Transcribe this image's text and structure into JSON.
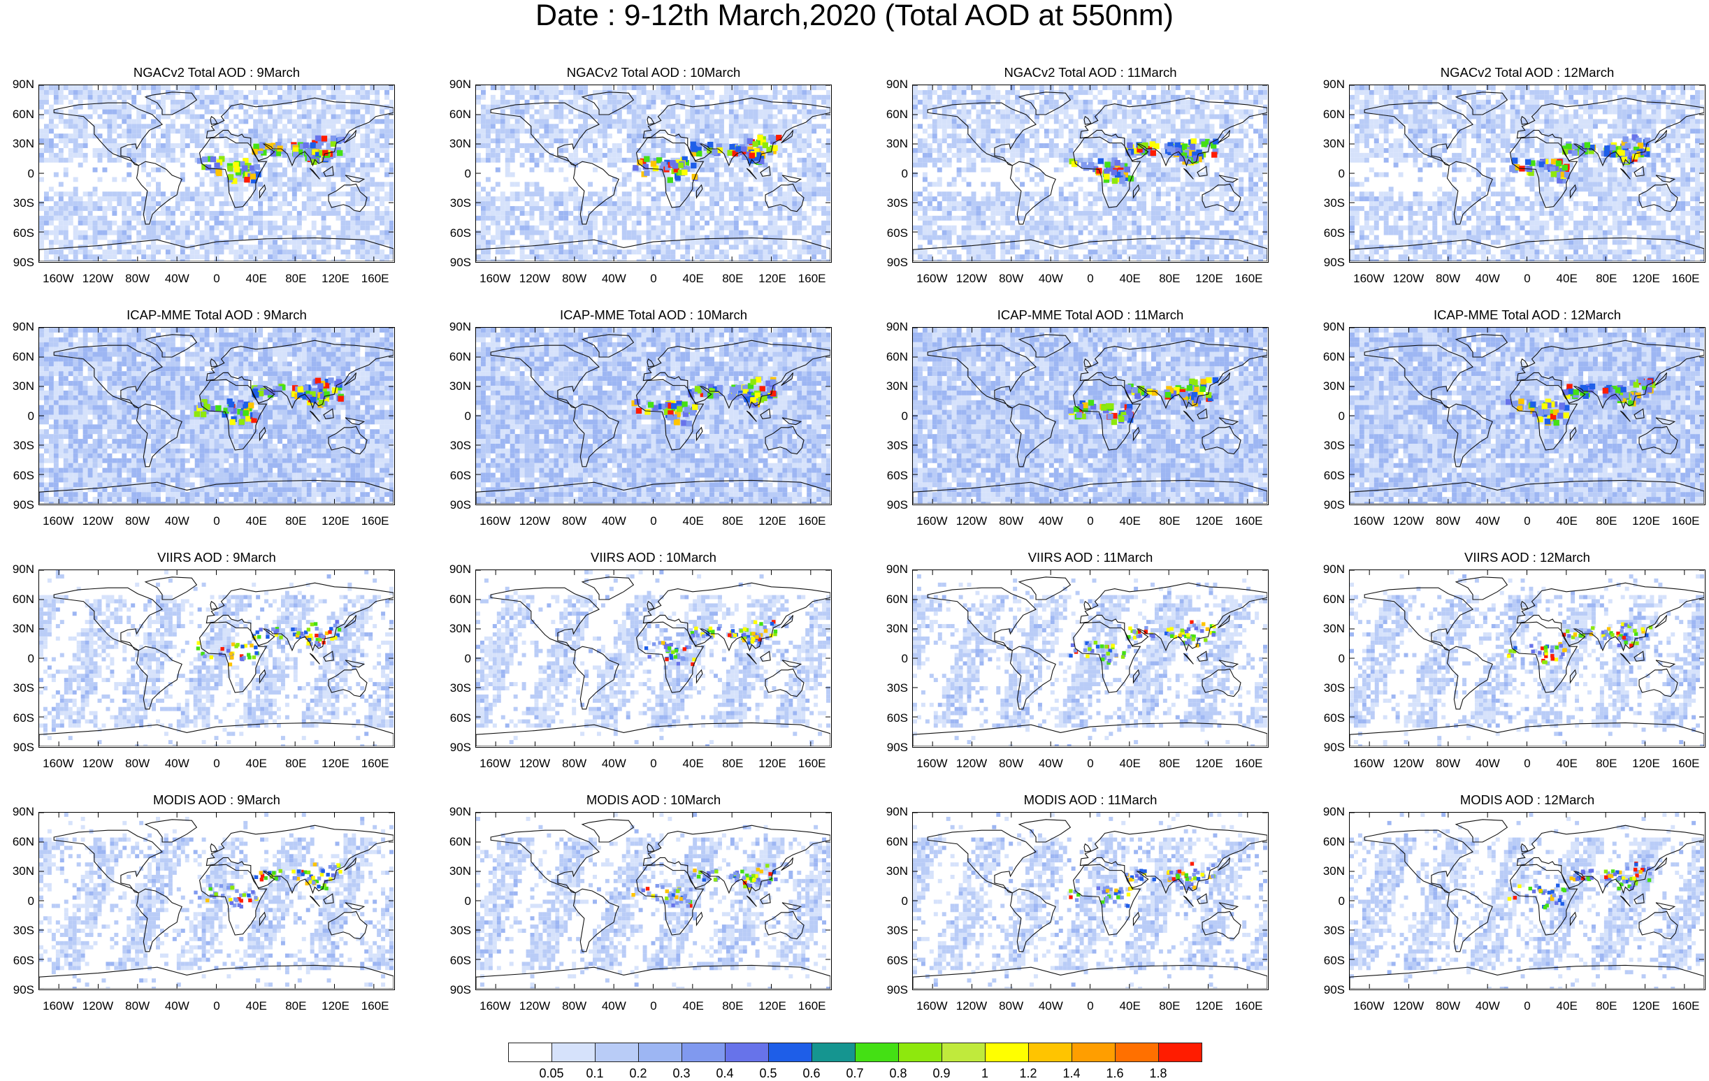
{
  "title": "Date : 9-12th March,2020 (Total AOD at 550nm)",
  "panels": [
    [
      "NGACv2 Total AOD : 9March",
      "NGACv2 Total AOD : 10March",
      "NGACv2 Total AOD : 11March",
      "NGACv2 Total AOD : 12March"
    ],
    [
      "ICAP-MME Total AOD : 9March",
      "ICAP-MME Total AOD : 10March",
      "ICAP-MME Total AOD : 11March",
      "ICAP-MME Total AOD : 12March"
    ],
    [
      "VIIRS AOD : 9March",
      "VIIRS AOD : 10March",
      "VIIRS AOD : 11March",
      "VIIRS AOD : 12March"
    ],
    [
      "MODIS AOD : 9March",
      "MODIS AOD : 10March",
      "MODIS AOD : 11March",
      "MODIS AOD : 12March"
    ]
  ],
  "lat_labels": [
    "90N",
    "60N",
    "30N",
    "0",
    "30S",
    "60S",
    "90S"
  ],
  "lon_labels": [
    "160W",
    "120W",
    "80W",
    "40W",
    "0",
    "40E",
    "80E",
    "120E",
    "160E"
  ],
  "colorbar": {
    "labels": [
      "0.05",
      "0.1",
      "0.2",
      "0.3",
      "0.4",
      "0.5",
      "0.6",
      "0.7",
      "0.8",
      "0.9",
      "1",
      "1.2",
      "1.4",
      "1.6",
      "1.8"
    ],
    "colors": [
      "#ffffff",
      "#d6e2fb",
      "#b9ccf7",
      "#9db6f3",
      "#8099ef",
      "#6773ea",
      "#1e5ee8",
      "#159590",
      "#44e014",
      "#8ee80d",
      "#c0ea3c",
      "#ffff00",
      "#ffc400",
      "#ff9e00",
      "#ff7000",
      "#ff1c00"
    ]
  }
}
